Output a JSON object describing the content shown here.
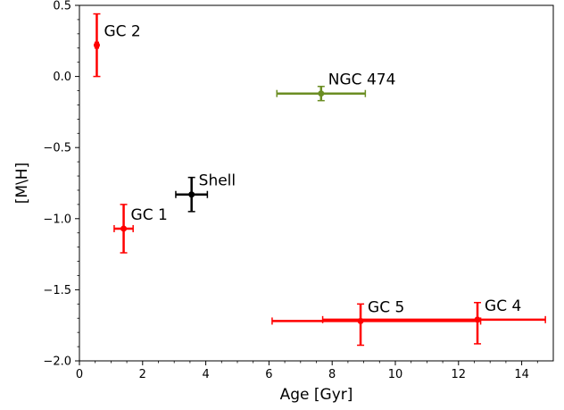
{
  "chart_data": {
    "type": "scatter",
    "title": "",
    "xlabel": "Age [Gyr]",
    "ylabel": "[M\\H]",
    "xlim": [
      0,
      15
    ],
    "ylim": [
      -2.0,
      0.5
    ],
    "xticks": [
      0,
      2,
      4,
      6,
      8,
      10,
      12,
      14
    ],
    "yticks": [
      0.5,
      0.0,
      -0.5,
      -1.0,
      -1.5,
      -2.0
    ],
    "grid": false,
    "points": [
      {
        "label": "GC 2",
        "x": 0.55,
        "y": 0.22,
        "xerr": [
          0.05,
          0.05
        ],
        "yerr": [
          0.22,
          0.22
        ],
        "color": "#ff0000"
      },
      {
        "label": "NGC 474",
        "x": 7.65,
        "y": -0.12,
        "xerr": [
          1.4,
          1.4
        ],
        "yerr": [
          0.05,
          0.05
        ],
        "color": "#6b8e23"
      },
      {
        "label": "Shell",
        "x": 3.55,
        "y": -0.83,
        "xerr": [
          0.5,
          0.5
        ],
        "yerr": [
          0.12,
          0.12
        ],
        "color": "#000000"
      },
      {
        "label": "GC 1",
        "x": 1.4,
        "y": -1.07,
        "xerr": [
          0.3,
          0.3
        ],
        "yerr": [
          0.17,
          0.17
        ],
        "color": "#ff0000"
      },
      {
        "label": "GC 5",
        "x": 8.9,
        "y": -1.72,
        "xerr": [
          2.8,
          3.8
        ],
        "yerr": [
          0.17,
          0.12
        ],
        "color": "#ff0000"
      },
      {
        "label": "GC 4",
        "x": 12.6,
        "y": -1.71,
        "xerr": [
          4.9,
          2.15
        ],
        "yerr": [
          0.17,
          0.12
        ],
        "color": "#ff0000"
      }
    ]
  }
}
